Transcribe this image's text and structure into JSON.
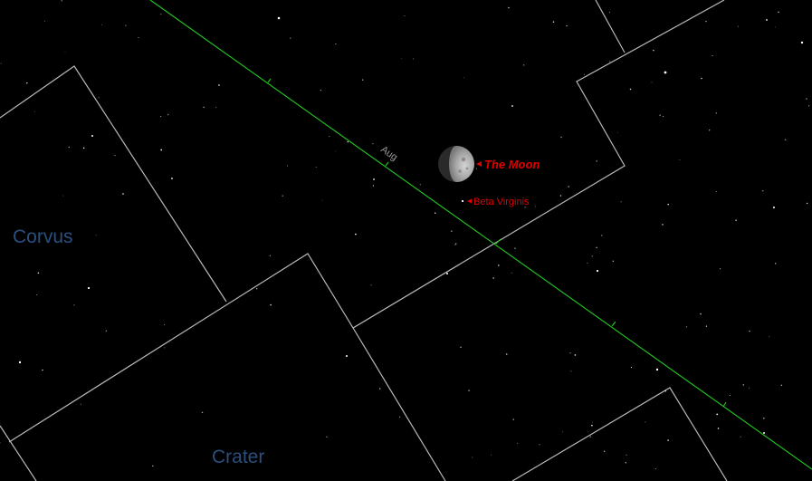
{
  "map": {
    "background_color": "#000000",
    "boundary_color": "#b8b8b8",
    "ecliptic_color": "#22c822",
    "constellation_label_color": "#2a4f7e",
    "object_label_color": "#e00000",
    "month_label_color": "#9a9a9a",
    "constellations": [
      {
        "name": "Corvus"
      },
      {
        "name": "Crater"
      }
    ],
    "objects": {
      "moon": {
        "label": "The Moon",
        "icon": "moon-icon"
      },
      "star": {
        "label": "Beta Virginis",
        "icon": "star-icon"
      }
    },
    "ecliptic": {
      "month_label": "Aug"
    }
  }
}
